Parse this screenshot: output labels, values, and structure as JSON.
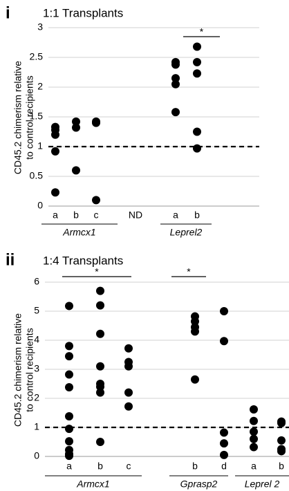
{
  "chart_data": [
    {
      "type": "dot",
      "panel_label": "i",
      "title": "1:1 Transplants",
      "y_label": [
        "CD45.2 chimerism relative",
        "to control recipients"
      ],
      "groups": [
        {
          "name": "Armcx1",
          "categories": [
            {
              "label": "a",
              "values": [
                1.33,
                1.28,
                1.2,
                0.92,
                0.23
              ]
            },
            {
              "label": "b",
              "values": [
                1.42,
                1.32,
                0.6
              ]
            },
            {
              "label": "c",
              "values": [
                1.42,
                1.4,
                0.1
              ]
            }
          ]
        },
        {
          "name": null,
          "categories": [
            {
              "label": "ND",
              "values": []
            }
          ]
        },
        {
          "name": "Leprel2",
          "categories": [
            {
              "label": "a",
              "values": [
                2.42,
                2.38,
                2.15,
                2.05,
                1.58
              ]
            },
            {
              "label": "b",
              "values": [
                2.68,
                2.42,
                2.23,
                1.25,
                0.97
              ]
            }
          ]
        }
      ],
      "annotations": [
        "*"
      ],
      "reference_line": 1,
      "color": "#000000",
      "ylim": [
        0,
        3
      ],
      "yticks": [
        0,
        0.5,
        1,
        1.5,
        2,
        2.5,
        3
      ],
      "grid": true
    },
    {
      "type": "dot",
      "panel_label": "ii",
      "title": "1:4 Transplants",
      "y_label": [
        "CD45.2 chimerism relative",
        "to control recipients"
      ],
      "groups": [
        {
          "name": "Armcx1",
          "categories": [
            {
              "label": "a",
              "values": [
                5.18,
                3.8,
                3.45,
                2.82,
                2.38,
                1.38,
                0.95,
                0.52,
                0.22,
                0.08,
                0.02
              ]
            },
            {
              "label": "b",
              "values": [
                5.7,
                5.2,
                4.22,
                3.1,
                2.5,
                2.4,
                2.2,
                0.5
              ]
            },
            {
              "label": "c",
              "values": [
                3.72,
                3.25,
                3.1,
                2.2,
                1.72
              ]
            }
          ]
        },
        {
          "name": "Gprasp2",
          "categories": [
            {
              "label": "b",
              "values": [
                4.82,
                4.65,
                4.45,
                4.3,
                2.65
              ]
            },
            {
              "label": "d",
              "values": [
                5.0,
                3.97,
                0.82,
                0.45,
                0.05
              ]
            }
          ]
        },
        {
          "name": "Leprel 2",
          "categories": [
            {
              "label": "a",
              "values": [
                1.62,
                1.22,
                0.85,
                0.6,
                0.32
              ]
            },
            {
              "label": "b",
              "values": [
                1.2,
                1.15,
                0.55,
                0.25,
                0.18
              ]
            }
          ]
        }
      ],
      "annotations": [
        "*",
        "*"
      ],
      "reference_line": 1,
      "color": "#000000",
      "ylim": [
        0,
        6
      ],
      "yticks": [
        0,
        1,
        2,
        3,
        4,
        5,
        6
      ],
      "grid": true
    }
  ]
}
